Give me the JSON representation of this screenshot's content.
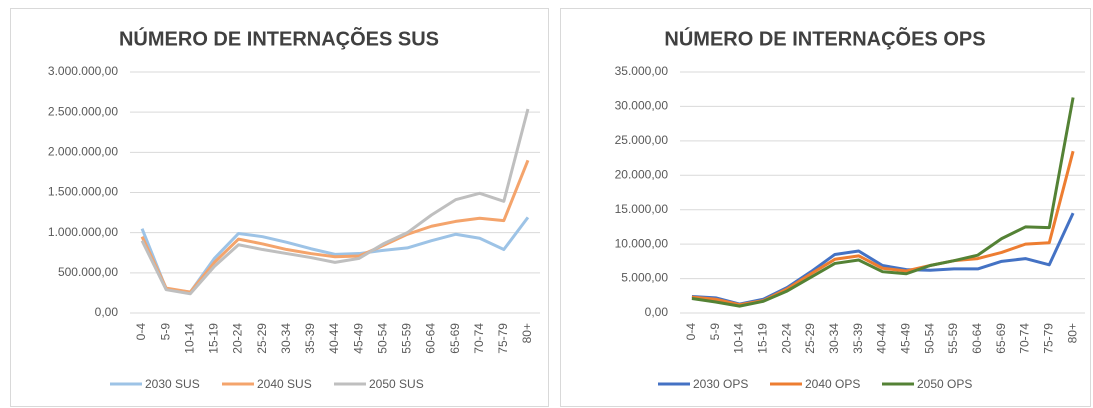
{
  "chart_data": [
    {
      "type": "line",
      "title": "NÚMERO DE INTERNAÇÕES SUS",
      "categories": [
        "0-4",
        "5-9",
        "10-14",
        "15-19",
        "20-24",
        "25-29",
        "30-34",
        "35-39",
        "40-44",
        "45-49",
        "50-54",
        "55-59",
        "60-64",
        "65-69",
        "70-74",
        "75-79",
        "80+"
      ],
      "series": [
        {
          "name": "2030 SUS",
          "color": "#9dc3e6",
          "values": [
            1050000,
            300000,
            260000,
            680000,
            990000,
            950000,
            880000,
            800000,
            730000,
            740000,
            780000,
            810000,
            900000,
            980000,
            930000,
            790000,
            1190000
          ]
        },
        {
          "name": "2040 SUS",
          "color": "#f4a46c",
          "values": [
            950000,
            310000,
            260000,
            630000,
            920000,
            860000,
            790000,
            740000,
            700000,
            710000,
            840000,
            980000,
            1080000,
            1140000,
            1180000,
            1150000,
            1900000
          ]
        },
        {
          "name": "2050 SUS",
          "color": "#bfbfbf",
          "values": [
            900000,
            290000,
            240000,
            580000,
            850000,
            790000,
            740000,
            690000,
            630000,
            680000,
            860000,
            1000000,
            1220000,
            1410000,
            1490000,
            1390000,
            2540000
          ]
        }
      ],
      "ylim": [
        0,
        3000000
      ],
      "yticks": [
        {
          "value": 0,
          "label": "0,00"
        },
        {
          "value": 500000,
          "label": "500.000,00"
        },
        {
          "value": 1000000,
          "label": "1.000.000,00"
        },
        {
          "value": 1500000,
          "label": "1.500.000,00"
        },
        {
          "value": 2000000,
          "label": "2.000.000,00"
        },
        {
          "value": 2500000,
          "label": "2.500.000,00"
        },
        {
          "value": 3000000,
          "label": "3.000.000,00"
        }
      ],
      "grid": true
    },
    {
      "type": "line",
      "title": "NÚMERO DE INTERNAÇÕES OPS",
      "categories": [
        "0-4",
        "5-9",
        "10-14",
        "15-19",
        "20-24",
        "25-29",
        "30-34",
        "35-39",
        "40-44",
        "45-49",
        "50-54",
        "55-59",
        "60-64",
        "65-69",
        "70-74",
        "75-79",
        "80+"
      ],
      "series": [
        {
          "name": "2030 OPS",
          "color": "#4472c4",
          "values": [
            2400,
            2200,
            1300,
            2000,
            3700,
            6000,
            8500,
            9000,
            6900,
            6300,
            6200,
            6400,
            6400,
            7500,
            7900,
            7000,
            14500
          ]
        },
        {
          "name": "2040 OPS",
          "color": "#ed7d31",
          "values": [
            2300,
            2000,
            1200,
            1800,
            3500,
            5700,
            7800,
            8300,
            6500,
            6100,
            6900,
            7600,
            7900,
            8800,
            10000,
            10200,
            23500
          ]
        },
        {
          "name": "2050 OPS",
          "color": "#548235",
          "values": [
            2100,
            1600,
            1000,
            1700,
            3200,
            5200,
            7200,
            7700,
            6000,
            5700,
            6900,
            7600,
            8400,
            10800,
            12500,
            12400,
            31300
          ]
        }
      ],
      "ylim": [
        0,
        35000
      ],
      "yticks": [
        {
          "value": 0,
          "label": "0,00"
        },
        {
          "value": 5000,
          "label": "5.000,00"
        },
        {
          "value": 10000,
          "label": "10.000,00"
        },
        {
          "value": 15000,
          "label": "15.000,00"
        },
        {
          "value": 20000,
          "label": "20.000,00"
        },
        {
          "value": 25000,
          "label": "25.000,00"
        },
        {
          "value": 30000,
          "label": "30.000,00"
        },
        {
          "value": 35000,
          "label": "35.000,00"
        }
      ],
      "grid": true
    }
  ]
}
